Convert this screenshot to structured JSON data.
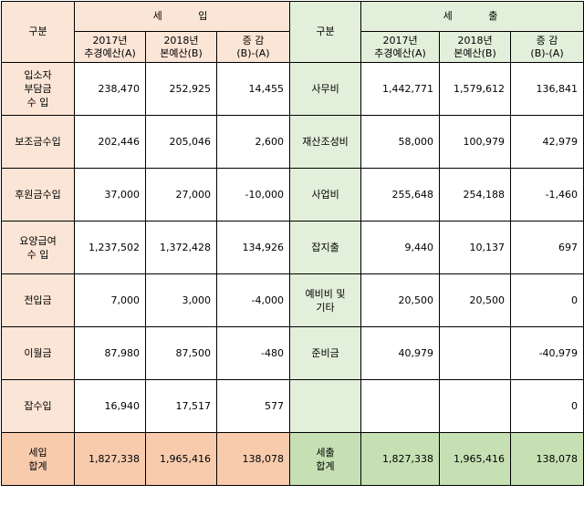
{
  "headers": {
    "category": "구분",
    "income_title": "세   입",
    "expense_title": "세   출",
    "col_2017": [
      "2017년",
      "추경예산(A)"
    ],
    "col_2018": [
      "2018년",
      "본예산(B)"
    ],
    "col_diff": [
      "증    감",
      "(B)-(A)"
    ]
  },
  "rows": [
    {
      "income_label": [
        "입소자",
        "부담금",
        "수  입"
      ],
      "income": [
        "238,470",
        "252,925",
        "14,455"
      ],
      "expense_label": [
        "사무비"
      ],
      "expense": [
        "1,442,771",
        "1,579,612",
        "136,841"
      ]
    },
    {
      "income_label": [
        "보조금수입"
      ],
      "income": [
        "202,446",
        "205,046",
        "2,600"
      ],
      "expense_label": [
        "재산조성비"
      ],
      "expense": [
        "58,000",
        "100,979",
        "42,979"
      ]
    },
    {
      "income_label": [
        "후원금수입"
      ],
      "income": [
        "37,000",
        "27,000",
        "-10,000"
      ],
      "expense_label": [
        "사업비"
      ],
      "expense": [
        "255,648",
        "254,188",
        "-1,460"
      ]
    },
    {
      "income_label": [
        "요양급여",
        "수  입"
      ],
      "income": [
        "1,237,502",
        "1,372,428",
        "134,926"
      ],
      "expense_label": [
        "잡지출"
      ],
      "expense": [
        "9,440",
        "10,137",
        "697"
      ]
    },
    {
      "income_label": [
        "전입금"
      ],
      "income": [
        "7,000",
        "3,000",
        "-4,000"
      ],
      "expense_label": [
        "예비비 및",
        "기타"
      ],
      "expense": [
        "20,500",
        "20,500",
        "0"
      ]
    },
    {
      "income_label": [
        "이월금"
      ],
      "income": [
        "87,980",
        "87,500",
        "-480"
      ],
      "expense_label": [
        "준비금"
      ],
      "expense": [
        "40,979",
        "",
        "-40,979"
      ]
    },
    {
      "income_label": [
        "잡수입"
      ],
      "income": [
        "16,940",
        "17,517",
        "577"
      ],
      "expense_label": [
        ""
      ],
      "expense": [
        "",
        "",
        "0"
      ]
    }
  ],
  "totals": {
    "income_label": [
      "세입",
      "합계"
    ],
    "income": [
      "1,827,338",
      "1,965,416",
      "138,078"
    ],
    "expense_label": [
      "세출",
      "합계"
    ],
    "expense": [
      "1,827,338",
      "1,965,416",
      "138,078"
    ]
  }
}
